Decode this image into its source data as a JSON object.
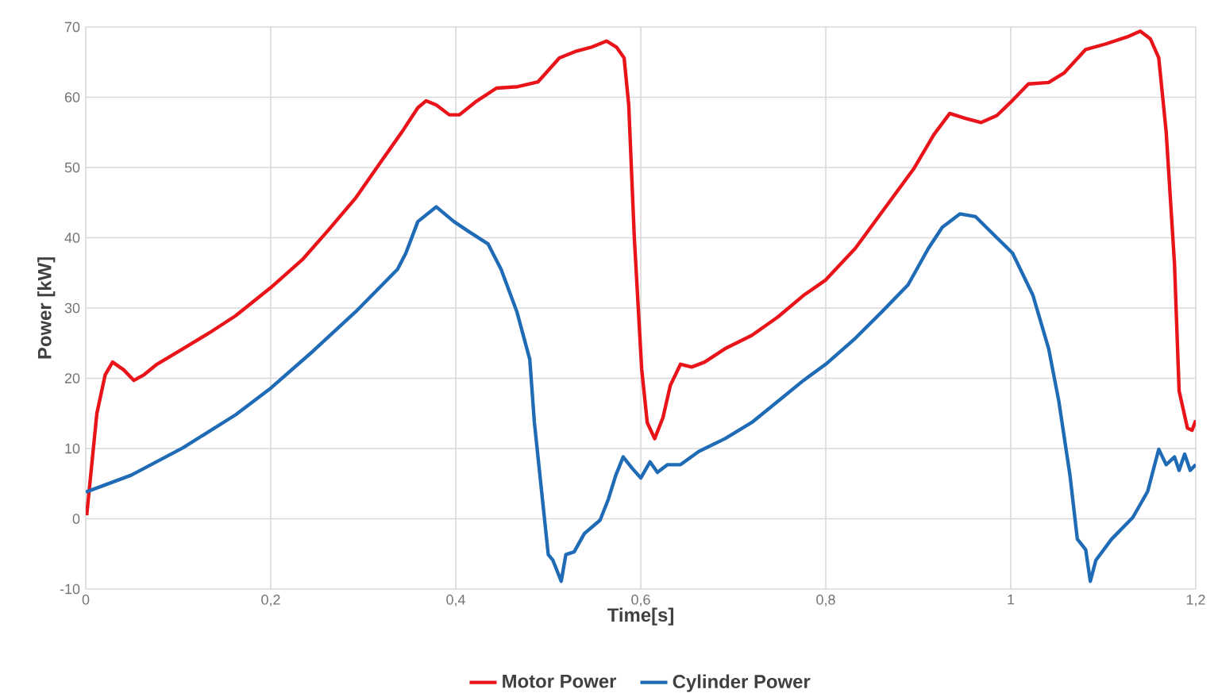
{
  "chart_data": {
    "type": "line",
    "xlabel": "Time[s]",
    "ylabel": "Power [kW]",
    "xlim": [
      0,
      1.2
    ],
    "ylim": [
      -10,
      70
    ],
    "xticks": [
      0,
      {
        "value": 0.2,
        "label": "0,2"
      },
      {
        "value": 0.4,
        "label": "0,4"
      },
      {
        "value": 0.6,
        "label": "0,6"
      },
      {
        "value": 0.8,
        "label": "0,8"
      },
      1,
      {
        "value": 1.2,
        "label": "1,2"
      }
    ],
    "yticks": [
      -10,
      0,
      10,
      20,
      30,
      40,
      50,
      60,
      70
    ],
    "grid": true,
    "legend": "bottom",
    "marker": "none",
    "line_style": "solid",
    "series": [
      {
        "name": "Motor Power",
        "color": "#e8141a",
        "x": [
          0.001,
          0.012,
          0.021,
          0.029,
          0.041,
          0.052,
          0.063,
          0.077,
          0.105,
          0.134,
          0.162,
          0.2,
          0.235,
          0.263,
          0.292,
          0.32,
          0.342,
          0.359,
          0.368,
          0.379,
          0.393,
          0.404,
          0.421,
          0.444,
          0.467,
          0.489,
          0.512,
          0.529,
          0.546,
          0.563,
          0.574,
          0.582,
          0.587,
          0.593,
          0.601,
          0.607,
          0.615,
          0.624,
          0.632,
          0.643,
          0.655,
          0.669,
          0.691,
          0.72,
          0.748,
          0.776,
          0.8,
          0.832,
          0.866,
          0.895,
          0.917,
          0.934,
          0.951,
          0.968,
          0.985,
          1.0,
          1.019,
          1.041,
          1.058,
          1.081,
          1.103,
          1.126,
          1.14,
          1.151,
          1.16,
          1.168,
          1.177,
          1.182,
          1.191,
          1.196,
          1.2
        ],
        "values": [
          0.5,
          15,
          20.5,
          22.3,
          21.2,
          19.7,
          20.5,
          22,
          24.2,
          26.5,
          28.9,
          32.9,
          37,
          41.2,
          45.7,
          51,
          55.1,
          58.5,
          59.5,
          58.9,
          57.5,
          57.5,
          59.3,
          61.3,
          61.5,
          62.2,
          65.6,
          66.5,
          67.1,
          68,
          67.1,
          65.6,
          58.9,
          40.1,
          21.3,
          13.7,
          11.4,
          14.4,
          19,
          22,
          21.6,
          22.3,
          24.2,
          26.1,
          28.7,
          31.8,
          34,
          38.5,
          44.6,
          49.8,
          54.7,
          57.7,
          57,
          56.4,
          57.4,
          59.3,
          61.9,
          62.1,
          63.5,
          66.8,
          67.6,
          68.6,
          69.4,
          68.3,
          65.6,
          55.1,
          36.3,
          18.2,
          12.9,
          12.6,
          14
        ]
      },
      {
        "name": "Cylinder Power",
        "color": "#1f6bb5",
        "x": [
          0,
          0.049,
          0.105,
          0.162,
          0.2,
          0.246,
          0.292,
          0.337,
          0.346,
          0.359,
          0.379,
          0.398,
          0.415,
          0.435,
          0.449,
          0.466,
          0.48,
          0.485,
          0.494,
          0.5,
          0.505,
          0.514,
          0.519,
          0.528,
          0.539,
          0.556,
          0.565,
          0.573,
          0.581,
          0.59,
          0.6,
          0.61,
          0.618,
          0.629,
          0.643,
          0.663,
          0.691,
          0.72,
          0.748,
          0.776,
          0.8,
          0.832,
          0.861,
          0.889,
          0.911,
          0.926,
          0.945,
          0.962,
          0.985,
          1.002,
          1.024,
          1.041,
          1.052,
          1.064,
          1.072,
          1.081,
          1.086,
          1.092,
          1.109,
          1.132,
          1.148,
          1.16,
          1.168,
          1.177,
          1.182,
          1.188,
          1.194,
          1.2
        ],
        "values": [
          3.8,
          6.2,
          10.1,
          14.8,
          18.6,
          23.9,
          29.5,
          35.5,
          37.8,
          42.3,
          44.4,
          42.3,
          40.8,
          39.1,
          35.5,
          29.5,
          22.7,
          13.7,
          2.4,
          -5.1,
          -5.9,
          -8.9,
          -5.1,
          -4.7,
          -2.1,
          -0.2,
          2.8,
          6.2,
          8.8,
          7.3,
          5.8,
          8.1,
          6.6,
          7.7,
          7.7,
          9.6,
          11.4,
          13.7,
          16.7,
          19.7,
          22,
          25.7,
          29.5,
          33.3,
          38.5,
          41.5,
          43.4,
          43,
          40,
          37.8,
          31.8,
          24.2,
          16.7,
          6.2,
          -2.9,
          -4.4,
          -8.9,
          -5.9,
          -2.9,
          0.2,
          3.9,
          9.9,
          7.7,
          8.8,
          6.9,
          9.2,
          6.9,
          7.7
        ]
      }
    ]
  }
}
